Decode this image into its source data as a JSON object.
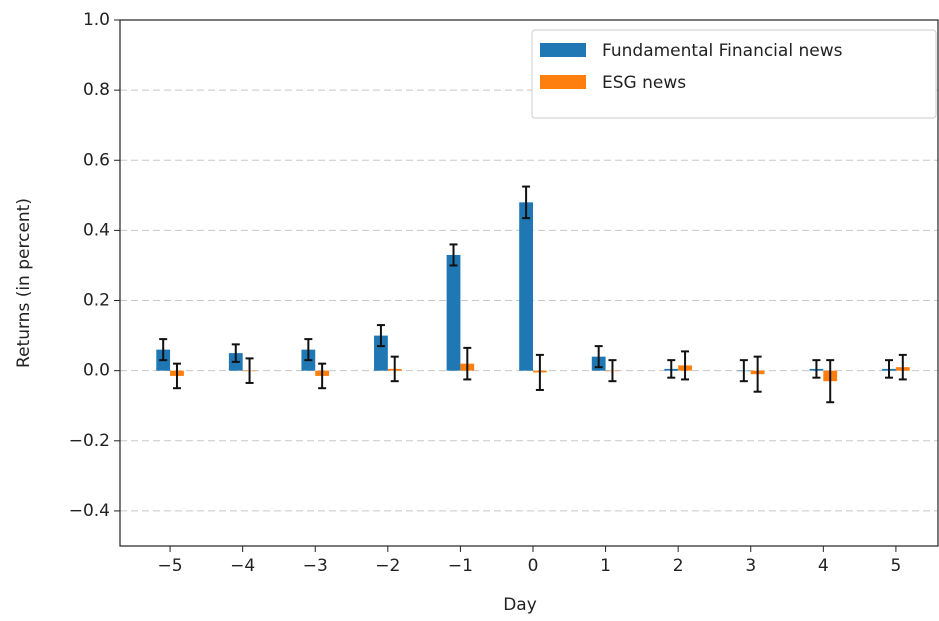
{
  "chart_data": {
    "type": "bar",
    "xlabel": "Day",
    "ylabel": "Returns (in percent)",
    "x": [
      -5,
      -4,
      -3,
      -2,
      -1,
      0,
      1,
      2,
      3,
      4,
      5
    ],
    "series": [
      {
        "name": "Fundamental Financial news",
        "color": "#1f77b4",
        "values": [
          0.06,
          0.05,
          0.06,
          0.1,
          0.33,
          0.48,
          0.04,
          0.005,
          0.0,
          0.005,
          0.005
        ],
        "errors": [
          0.03,
          0.025,
          0.03,
          0.03,
          0.03,
          0.045,
          0.03,
          0.025,
          0.03,
          0.025,
          0.025
        ]
      },
      {
        "name": "ESG news",
        "color": "#ff7f0e",
        "values": [
          -0.015,
          0.0,
          -0.015,
          0.005,
          0.02,
          -0.005,
          0.0,
          0.015,
          -0.01,
          -0.03,
          0.01
        ],
        "errors": [
          0.035,
          0.035,
          0.035,
          0.035,
          0.045,
          0.05,
          0.03,
          0.04,
          0.05,
          0.06,
          0.035
        ]
      }
    ],
    "xlim": [
      -5.69,
      5.58
    ],
    "ylim": [
      -0.5,
      1.0
    ],
    "xticks": [
      {
        "value": -5,
        "label": "−5"
      },
      {
        "value": -4,
        "label": "−4"
      },
      {
        "value": -3,
        "label": "−3"
      },
      {
        "value": -2,
        "label": "−2"
      },
      {
        "value": -1,
        "label": "−1"
      },
      0,
      1,
      2,
      3,
      4,
      5
    ],
    "yticks": [
      {
        "value": -0.4,
        "label": "−0.4"
      },
      {
        "value": -0.2,
        "label": "−0.2"
      },
      {
        "value": 0,
        "label": "0.0"
      },
      {
        "value": 0.2,
        "label": "0.2"
      },
      {
        "value": 0.4,
        "label": "0.4"
      },
      {
        "value": 0.6,
        "label": "0.6"
      },
      {
        "value": 0.8,
        "label": "0.8"
      },
      {
        "value": 1.0,
        "label": "1.0"
      }
    ],
    "grid": true,
    "legend": "upper right"
  }
}
